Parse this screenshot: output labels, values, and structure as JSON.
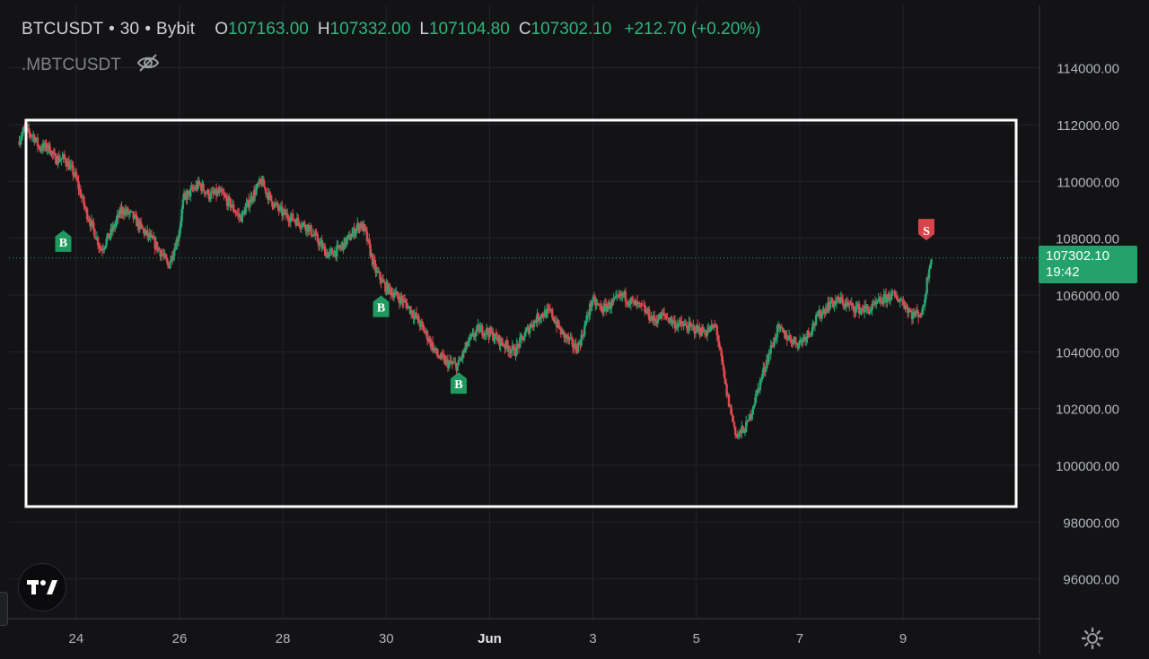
{
  "header": {
    "symbol": "BTCUSDT",
    "interval": "30",
    "exchange": "Bybit",
    "sep": "•",
    "o_label": "O",
    "o_value": "107163.00",
    "h_label": "H",
    "h_value": "107332.00",
    "l_label": "L",
    "l_value": "107104.80",
    "c_label": "C",
    "c_value": "107302.10",
    "change": "+212.70 (+0.20%)",
    "indicator": ".MBTCUSDT"
  },
  "price_tag": {
    "price": "107302.10",
    "countdown": "19:42"
  },
  "colors": {
    "up": "#26a672",
    "down": "#e0494f",
    "grid": "#232428",
    "text": "#b2b5be",
    "tag": "#23a36b",
    "sell": "#d9434a",
    "buy": "#1f9a5f"
  },
  "chart_data": {
    "type": "candlestick",
    "title": "BTCUSDT · 30 · Bybit",
    "ylim": [
      94600,
      116200
    ],
    "grid": true,
    "y_ticks": [
      "96000.00",
      "98000.00",
      "100000.00",
      "102000.00",
      "104000.00",
      "106000.00",
      "108000.00",
      "110000.00",
      "112000.00",
      "114000.00"
    ],
    "x_ticks": [
      {
        "label": "24",
        "day": 1.0
      },
      {
        "label": "26",
        "day": 3.0
      },
      {
        "label": "28",
        "day": 5.0
      },
      {
        "label": "30",
        "day": 7.0
      },
      {
        "label": "Jun",
        "day": 9.0
      },
      {
        "label": "3",
        "day": 11.0
      },
      {
        "label": "5",
        "day": 13.0
      },
      {
        "label": "7",
        "day": 15.0
      },
      {
        "label": "9",
        "day": 17.0
      }
    ],
    "x_domain": [
      -0.3,
      19.5
    ],
    "last_price": 107302.1,
    "path": [
      [
        -0.1,
        111400
      ],
      [
        0.0,
        111800
      ],
      [
        0.2,
        111600
      ],
      [
        0.3,
        111200
      ],
      [
        0.5,
        111200
      ],
      [
        0.6,
        110800
      ],
      [
        0.8,
        110800
      ],
      [
        1.0,
        110200
      ],
      [
        1.2,
        109000
      ],
      [
        1.4,
        108100
      ],
      [
        1.5,
        107600
      ],
      [
        1.7,
        108200
      ],
      [
        1.9,
        109000
      ],
      [
        2.1,
        108800
      ],
      [
        2.3,
        108300
      ],
      [
        2.5,
        107900
      ],
      [
        2.7,
        107400
      ],
      [
        2.8,
        107000
      ],
      [
        3.0,
        108100
      ],
      [
        3.1,
        109400
      ],
      [
        3.4,
        109900
      ],
      [
        3.6,
        109500
      ],
      [
        3.8,
        109600
      ],
      [
        4.0,
        109200
      ],
      [
        4.2,
        108700
      ],
      [
        4.4,
        109400
      ],
      [
        4.6,
        110000
      ],
      [
        4.8,
        109300
      ],
      [
        5.0,
        108900
      ],
      [
        5.3,
        108600
      ],
      [
        5.5,
        108400
      ],
      [
        5.7,
        107900
      ],
      [
        5.9,
        107400
      ],
      [
        6.1,
        107600
      ],
      [
        6.3,
        108000
      ],
      [
        6.5,
        108500
      ],
      [
        6.6,
        108300
      ],
      [
        6.8,
        106900
      ],
      [
        7.0,
        106300
      ],
      [
        7.2,
        106000
      ],
      [
        7.4,
        105700
      ],
      [
        7.6,
        105200
      ],
      [
        7.8,
        104600
      ],
      [
        8.0,
        103900
      ],
      [
        8.2,
        103600
      ],
      [
        8.4,
        103500
      ],
      [
        8.6,
        104300
      ],
      [
        8.8,
        104800
      ],
      [
        9.0,
        104700
      ],
      [
        9.2,
        104400
      ],
      [
        9.5,
        104000
      ],
      [
        9.8,
        104900
      ],
      [
        10.0,
        105300
      ],
      [
        10.2,
        105400
      ],
      [
        10.4,
        104700
      ],
      [
        10.7,
        104100
      ],
      [
        10.8,
        104500
      ],
      [
        11.0,
        105800
      ],
      [
        11.2,
        105500
      ],
      [
        11.4,
        105700
      ],
      [
        11.6,
        106000
      ],
      [
        11.8,
        105700
      ],
      [
        12.0,
        105500
      ],
      [
        12.2,
        105100
      ],
      [
        12.4,
        105300
      ],
      [
        12.6,
        105000
      ],
      [
        12.8,
        104900
      ],
      [
        13.0,
        104800
      ],
      [
        13.2,
        104700
      ],
      [
        13.4,
        104900
      ],
      [
        13.6,
        102600
      ],
      [
        13.8,
        101000
      ],
      [
        14.0,
        101400
      ],
      [
        14.2,
        102600
      ],
      [
        14.4,
        103800
      ],
      [
        14.6,
        104800
      ],
      [
        14.8,
        104500
      ],
      [
        15.0,
        104300
      ],
      [
        15.2,
        104700
      ],
      [
        15.4,
        105300
      ],
      [
        15.6,
        105700
      ],
      [
        15.8,
        105800
      ],
      [
        16.0,
        105600
      ],
      [
        16.2,
        105500
      ],
      [
        16.4,
        105500
      ],
      [
        16.6,
        105800
      ],
      [
        16.8,
        106000
      ],
      [
        17.0,
        105800
      ],
      [
        17.2,
        105300
      ],
      [
        17.4,
        105400
      ],
      [
        17.5,
        106700
      ],
      [
        17.55,
        107302
      ]
    ],
    "markers": [
      {
        "label": "B",
        "type": "buy",
        "day": 0.75,
        "price": 107900
      },
      {
        "label": "B",
        "type": "buy",
        "day": 6.9,
        "price": 105600
      },
      {
        "label": "B",
        "type": "buy",
        "day": 8.4,
        "price": 102900
      },
      {
        "label": "S",
        "type": "sell",
        "day": 17.45,
        "price": 108300
      }
    ]
  }
}
